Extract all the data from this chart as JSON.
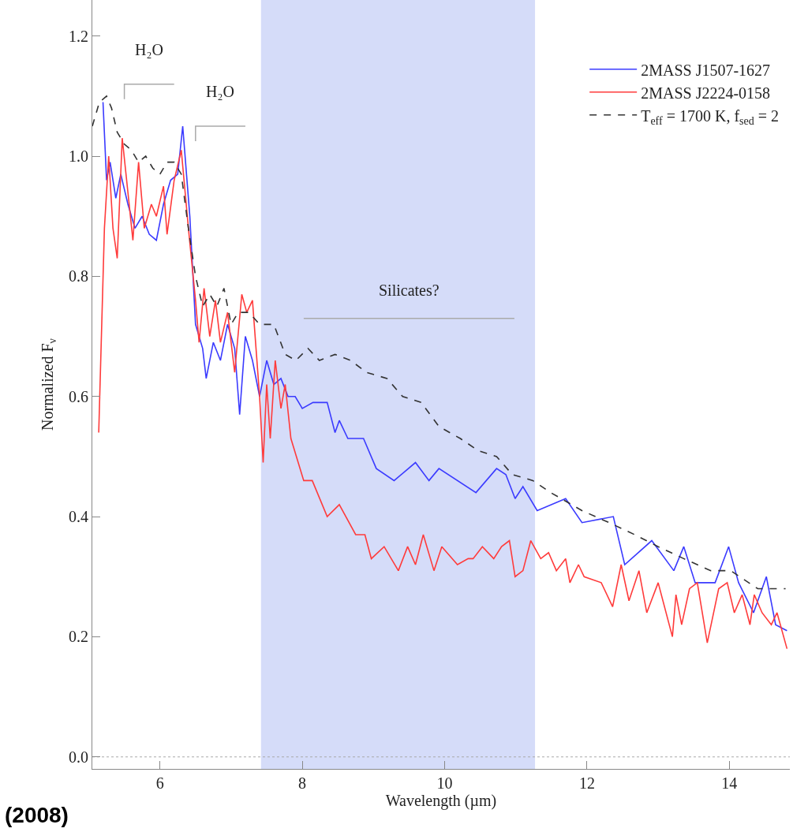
{
  "chart_data": {
    "type": "line",
    "xlabel": "Wavelength (µm)",
    "ylabel": "Normalized F$_{ν}$",
    "legend": "top right",
    "marker": "none",
    "xlim": [
      5.05,
      14.85
    ],
    "xticks": [
      6,
      8,
      10,
      12,
      14
    ],
    "ylim": [
      -0.02,
      1.26
    ],
    "yticks": [
      {
        "value": 0,
        "label": "0.0"
      },
      {
        "value": 0.2,
        "label": "0.2"
      },
      {
        "value": 0.4,
        "label": "0.4"
      },
      {
        "value": 0.6,
        "label": "0.6"
      },
      {
        "value": 0.8,
        "label": "0.8"
      },
      {
        "value": 1,
        "label": "1.0"
      },
      {
        "value": 1.2,
        "label": "1.2"
      }
    ],
    "grid": false,
    "series": [
      {
        "name": "2MASS J1507-1627",
        "color": "#3b3bff",
        "line_style": "solid",
        "x": [
          5.2,
          5.25,
          5.3,
          5.38,
          5.45,
          5.55,
          5.65,
          5.75,
          5.85,
          5.95,
          6.05,
          6.15,
          6.25,
          6.32,
          6.42,
          6.5,
          6.6,
          6.65,
          6.75,
          6.85,
          6.95,
          7.05,
          7.12,
          7.2,
          7.3,
          7.4,
          7.5,
          7.6,
          7.7,
          7.8,
          7.9,
          8.0,
          8.15,
          8.35,
          8.46,
          8.52,
          8.64,
          8.86,
          9.04,
          9.29,
          9.59,
          9.78,
          9.92,
          10.44,
          10.73,
          10.86,
          10.99,
          11.1,
          11.3,
          11.7,
          11.93,
          12.37,
          12.53,
          12.91,
          13.22,
          13.36,
          13.52,
          13.8,
          13.99,
          14.13,
          14.34,
          14.52,
          14.65,
          14.81
        ],
        "values": [
          1.09,
          0.96,
          0.99,
          0.93,
          0.97,
          0.92,
          0.88,
          0.9,
          0.87,
          0.86,
          0.92,
          0.96,
          0.97,
          1.05,
          0.9,
          0.72,
          0.68,
          0.63,
          0.69,
          0.66,
          0.72,
          0.68,
          0.57,
          0.7,
          0.66,
          0.6,
          0.66,
          0.62,
          0.63,
          0.6,
          0.6,
          0.58,
          0.59,
          0.59,
          0.54,
          0.56,
          0.53,
          0.53,
          0.48,
          0.46,
          0.49,
          0.46,
          0.48,
          0.44,
          0.48,
          0.47,
          0.43,
          0.45,
          0.41,
          0.43,
          0.39,
          0.4,
          0.32,
          0.36,
          0.31,
          0.35,
          0.29,
          0.29,
          0.35,
          0.29,
          0.24,
          0.3,
          0.22,
          0.21
        ]
      },
      {
        "name": "2MASS J2224-0158",
        "color": "#ff3b3b",
        "line_style": "solid",
        "x": [
          5.14,
          5.22,
          5.28,
          5.34,
          5.4,
          5.47,
          5.55,
          5.62,
          5.7,
          5.78,
          5.88,
          5.95,
          6.05,
          6.1,
          6.2,
          6.3,
          6.4,
          6.5,
          6.55,
          6.62,
          6.7,
          6.78,
          6.85,
          6.95,
          7.05,
          7.15,
          7.22,
          7.3,
          7.4,
          7.45,
          7.5,
          7.55,
          7.62,
          7.7,
          7.76,
          7.84,
          8.02,
          8.14,
          8.35,
          8.52,
          8.75,
          8.88,
          8.97,
          9.15,
          9.35,
          9.48,
          9.59,
          9.7,
          9.85,
          9.96,
          10.18,
          10.33,
          10.4,
          10.53,
          10.69,
          10.8,
          10.91,
          10.99,
          11.1,
          11.21,
          11.35,
          11.46,
          11.57,
          11.7,
          11.76,
          11.88,
          11.96,
          12.2,
          12.36,
          12.48,
          12.59,
          12.73,
          12.84,
          13.0,
          13.2,
          13.25,
          13.33,
          13.44,
          13.55,
          13.69,
          13.85,
          13.97,
          14.07,
          14.18,
          14.29,
          14.35,
          14.46,
          14.59,
          14.67,
          14.81
        ],
        "values": [
          0.54,
          0.88,
          1.0,
          0.88,
          0.83,
          1.03,
          0.94,
          0.86,
          0.99,
          0.88,
          0.92,
          0.9,
          0.95,
          0.87,
          0.96,
          1.01,
          0.88,
          0.76,
          0.69,
          0.78,
          0.7,
          0.76,
          0.69,
          0.74,
          0.64,
          0.77,
          0.74,
          0.76,
          0.6,
          0.49,
          0.62,
          0.53,
          0.66,
          0.58,
          0.62,
          0.53,
          0.46,
          0.46,
          0.4,
          0.42,
          0.37,
          0.37,
          0.33,
          0.35,
          0.31,
          0.35,
          0.32,
          0.37,
          0.31,
          0.35,
          0.32,
          0.33,
          0.33,
          0.35,
          0.33,
          0.35,
          0.36,
          0.3,
          0.31,
          0.36,
          0.33,
          0.34,
          0.31,
          0.33,
          0.29,
          0.32,
          0.3,
          0.29,
          0.25,
          0.32,
          0.26,
          0.31,
          0.24,
          0.29,
          0.2,
          0.27,
          0.22,
          0.28,
          0.29,
          0.19,
          0.28,
          0.29,
          0.24,
          0.27,
          0.22,
          0.27,
          0.24,
          0.22,
          0.24,
          0.18
        ]
      },
      {
        "name": "T$_{eff}$ = 1700 K, f$_{sed}$ = 2",
        "color": "#333333",
        "line_style": "dashed",
        "x": [
          5.05,
          5.15,
          5.25,
          5.32,
          5.4,
          5.5,
          5.6,
          5.7,
          5.8,
          5.9,
          6.0,
          6.1,
          6.2,
          6.3,
          6.4,
          6.5,
          6.6,
          6.7,
          6.8,
          6.9,
          7.0,
          7.1,
          7.25,
          7.4,
          7.6,
          7.76,
          7.91,
          8.08,
          8.24,
          8.46,
          8.68,
          8.9,
          9.19,
          9.41,
          9.67,
          9.92,
          10.22,
          10.47,
          10.73,
          10.95,
          11.24,
          11.49,
          11.93,
          12.31,
          12.67,
          13.0,
          13.36,
          13.74,
          14.02,
          14.4,
          14.79
        ],
        "values": [
          1.05,
          1.09,
          1.1,
          1.08,
          1.04,
          1.02,
          1.01,
          0.99,
          1.0,
          0.98,
          0.97,
          0.99,
          0.99,
          0.97,
          0.88,
          0.8,
          0.75,
          0.77,
          0.75,
          0.78,
          0.72,
          0.74,
          0.74,
          0.72,
          0.72,
          0.67,
          0.66,
          0.68,
          0.66,
          0.67,
          0.66,
          0.64,
          0.63,
          0.6,
          0.59,
          0.55,
          0.53,
          0.51,
          0.5,
          0.47,
          0.46,
          0.44,
          0.41,
          0.39,
          0.37,
          0.35,
          0.33,
          0.31,
          0.31,
          0.28,
          0.28
        ]
      }
    ],
    "ref_lines": [
      {
        "axis": "y",
        "value": 0,
        "color": "#aaaaaa",
        "line_style": "dotted"
      }
    ],
    "bands": [
      {
        "axis": "x",
        "from": 7.42,
        "to": 11.27,
        "color": "#d5dcf9"
      }
    ],
    "annotations": [
      "H₂O",
      "H₂O",
      "Silicates?",
      "(2008)"
    ]
  }
}
